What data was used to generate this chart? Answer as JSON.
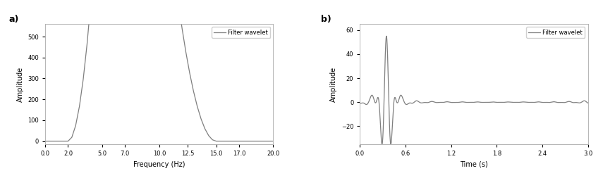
{
  "panel_a": {
    "title_label": "a)",
    "xlabel": "Frequency (Hz)",
    "ylabel": "Amplitude",
    "xlim": [
      0.0,
      20.0
    ],
    "ylim": [
      -15,
      560
    ],
    "xticks": [
      0.0,
      2.0,
      5.0,
      7.0,
      10.0,
      12.5,
      15.0,
      17.0,
      20.0
    ],
    "xtick_labels": [
      "0.0",
      "2.0",
      "5.0",
      "7.0",
      "10.0",
      "12.5",
      "15.0",
      "17.0",
      "20.0"
    ],
    "yticks": [
      0,
      100,
      200,
      300,
      400,
      500
    ],
    "legend_label": "Filter wavelet",
    "ormsby_corners": [
      2.0,
      5.0,
      10.0,
      15.0
    ],
    "dt": 0.001,
    "duration": 3.0,
    "line_color": "#7f7f7f"
  },
  "panel_b": {
    "title_label": "b)",
    "xlabel": "Time (s)",
    "ylabel": "Amplitude",
    "xlim": [
      0.0,
      3.0
    ],
    "ylim": [
      -35,
      65
    ],
    "xticks": [
      0.0,
      0.6,
      1.2,
      1.8,
      2.4,
      3.0
    ],
    "xtick_labels": [
      "0.0",
      "0.6",
      "1.2",
      "1.8",
      "2.4",
      "3.0"
    ],
    "yticks": [
      -20,
      0,
      20,
      40,
      60
    ],
    "legend_label": "Filter wavelet",
    "line_color": "#7f7f7f",
    "peak_time": 0.35,
    "peak_amplitude": 55.0
  },
  "background_color": "#ffffff",
  "figure_bgcolor": "#ffffff"
}
